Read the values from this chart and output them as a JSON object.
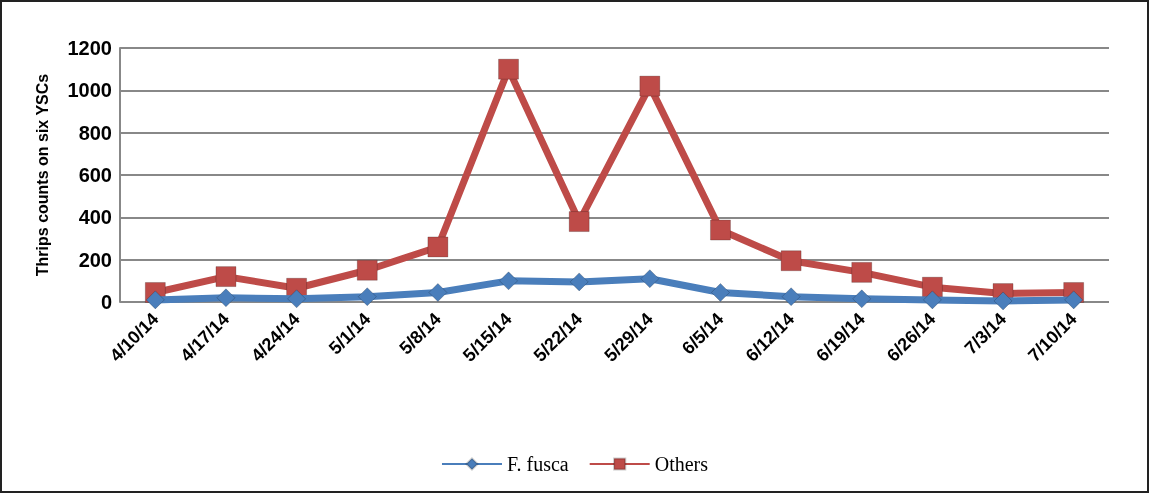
{
  "chart_data": {
    "type": "line",
    "ylabel": "Thrips counts on six YSCs",
    "categories": [
      "4/10/14",
      "4/17/14",
      "4/24/14",
      "5/1/14",
      "5/8/14",
      "5/15/14",
      "5/22/14",
      "5/29/14",
      "6/5/14",
      "6/12/14",
      "6/19/14",
      "6/26/14",
      "7/3/14",
      "7/10/14"
    ],
    "series": [
      {
        "name": "F. fusca",
        "color": "#4a7ebb",
        "marker": "diamond",
        "values": [
          10,
          20,
          15,
          25,
          45,
          100,
          95,
          110,
          45,
          25,
          15,
          10,
          5,
          10
        ]
      },
      {
        "name": "Others",
        "color": "#be4b48",
        "marker": "square",
        "values": [
          45,
          120,
          65,
          150,
          260,
          1100,
          380,
          1020,
          340,
          195,
          140,
          70,
          40,
          45
        ]
      }
    ],
    "ylim": [
      0,
      1200
    ],
    "yticks": [
      0,
      200,
      400,
      600,
      800,
      1000,
      1200
    ],
    "grid": "y",
    "legend": "bottom"
  }
}
